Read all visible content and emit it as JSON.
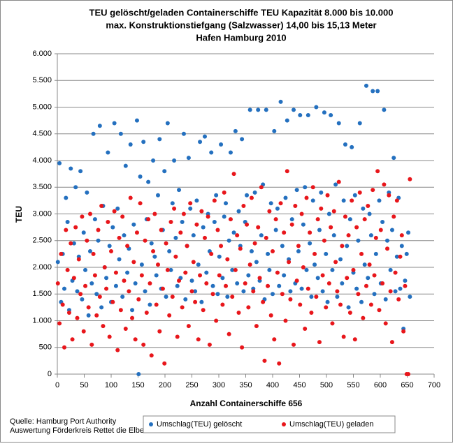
{
  "chart_data": {
    "type": "scatter",
    "title": [
      "TEU gelöscht/geladen Containerschiffe TEU Kapazität 8.000 bis 10.000",
      "max. Konstruktionstiefgang (Salzwasser) 14,00 bis 15,13 Meter",
      "Hafen Hamburg 2010"
    ],
    "xlabel": "Anzahl Containerschiffe 656",
    "ylabel": "TEU",
    "source": [
      "Quelle: Hamburg Port Authority",
      "Auswertung Förderkreis Rettet die Elbe"
    ],
    "xlim": [
      0,
      700
    ],
    "xticks": [
      0,
      50,
      100,
      150,
      200,
      250,
      300,
      350,
      400,
      450,
      500,
      550,
      600,
      650,
      700
    ],
    "ylim": [
      0,
      6000
    ],
    "yticks": [
      {
        "value": 0,
        "label": "0"
      },
      {
        "value": 500,
        "label": "500"
      },
      {
        "value": 1000,
        "label": "1.000"
      },
      {
        "value": 1500,
        "label": "1.500"
      },
      {
        "value": 2000,
        "label": "2.000"
      },
      {
        "value": 2500,
        "label": "2.500"
      },
      {
        "value": 3000,
        "label": "3.000"
      },
      {
        "value": 3500,
        "label": "3.500"
      },
      {
        "value": 4000,
        "label": "4.000"
      },
      {
        "value": 4500,
        "label": "4.500"
      },
      {
        "value": 5000,
        "label": "5.000"
      },
      {
        "value": 5500,
        "label": "5.500"
      },
      {
        "value": 6000,
        "label": "6.000"
      }
    ],
    "grid": true,
    "legend": "bottom",
    "x": [
      1,
      4,
      7,
      10,
      13,
      16,
      19,
      22,
      25,
      28,
      31,
      34,
      37,
      40,
      43,
      46,
      49,
      52,
      55,
      58,
      61,
      64,
      67,
      70,
      73,
      76,
      79,
      82,
      85,
      88,
      91,
      94,
      97,
      100,
      103,
      106,
      109,
      112,
      115,
      118,
      121,
      124,
      127,
      130,
      133,
      136,
      139,
      142,
      145,
      148,
      151,
      154,
      157,
      160,
      163,
      166,
      169,
      172,
      175,
      178,
      181,
      184,
      187,
      190,
      193,
      196,
      199,
      202,
      205,
      208,
      211,
      214,
      217,
      220,
      223,
      226,
      229,
      232,
      235,
      238,
      241,
      244,
      247,
      250,
      253,
      256,
      259,
      262,
      265,
      268,
      271,
      274,
      277,
      280,
      283,
      286,
      289,
      292,
      295,
      298,
      301,
      304,
      307,
      310,
      313,
      316,
      319,
      322,
      325,
      328,
      331,
      334,
      337,
      340,
      343,
      346,
      349,
      352,
      355,
      358,
      361,
      364,
      367,
      370,
      373,
      376,
      379,
      382,
      385,
      388,
      391,
      394,
      397,
      400,
      403,
      406,
      409,
      412,
      415,
      418,
      421,
      424,
      427,
      430,
      433,
      436,
      439,
      442,
      445,
      448,
      451,
      454,
      457,
      460,
      463,
      466,
      469,
      472,
      475,
      478,
      481,
      484,
      487,
      490,
      493,
      496,
      499,
      502,
      505,
      508,
      511,
      514,
      517,
      520,
      523,
      526,
      529,
      532,
      535,
      538,
      541,
      544,
      547,
      550,
      553,
      556,
      559,
      562,
      565,
      568,
      571,
      574,
      577,
      580,
      583,
      586,
      589,
      592,
      595,
      598,
      601,
      604,
      607,
      610,
      613,
      616,
      619,
      622,
      625,
      628,
      631,
      634,
      637,
      640,
      643,
      646,
      649,
      652,
      655
    ],
    "series": [
      {
        "name": "Umschlag(TEU) gelöscht",
        "color": "#2470bf",
        "values": [
          2100,
          3950,
          1350,
          2250,
          1600,
          3300,
          2850,
          1200,
          3850,
          1750,
          2450,
          3500,
          1550,
          2200,
          3800,
          1400,
          2650,
          1950,
          3400,
          1100,
          2300,
          1700,
          4500,
          2900,
          1500,
          2500,
          4650,
          1250,
          3150,
          2000,
          1800,
          4150,
          2400,
          1350,
          2750,
          4700,
          1650,
          3100,
          2150,
          4500,
          1450,
          2600,
          3900,
          1900,
          2350,
          4300,
          1200,
          2800,
          1700,
          4750,
          0,
          3700,
          2050,
          4350,
          1550,
          2900,
          3600,
          1300,
          2450,
          4000,
          2200,
          1850,
          3350,
          4400,
          1600,
          2700,
          3800,
          1450,
          4700,
          2300,
          1950,
          3200,
          4000,
          2550,
          1650,
          3450,
          1800,
          2850,
          4500,
          1400,
          2400,
          4050,
          3100,
          1750,
          2600,
          1550,
          3250,
          2050,
          4350,
          1350,
          2750,
          4450,
          1900,
          3000,
          2300,
          4150,
          1650,
          2850,
          3350,
          1500,
          2200,
          4300,
          1800,
          2950,
          3200,
          1450,
          2500,
          4150,
          1950,
          2650,
          4550,
          1700,
          3050,
          2400,
          4400,
          1550,
          2850,
          3350,
          1850,
          4950,
          2300,
          1600,
          3400,
          2100,
          4950,
          1750,
          2600,
          3550,
          1400,
          4950,
          2250,
          1950,
          3200,
          1500,
          4550,
          2700,
          3100,
          1650,
          5100,
          2400,
          1850,
          3300,
          4750,
          2150,
          1550,
          2900,
          4950,
          1700,
          3450,
          2300,
          4850,
          1600,
          2800,
          3500,
          1950,
          4850,
          2450,
          1450,
          3250,
          2050,
          5000,
          1800,
          2700,
          3400,
          1550,
          4900,
          2250,
          1350,
          3000,
          4850,
          1950,
          2600,
          3550,
          1450,
          4700,
          2150,
          1700,
          3250,
          4300,
          2400,
          1250,
          2900,
          4250,
          1900,
          3350,
          1600,
          2500,
          4700,
          1350,
          3100,
          2050,
          5400,
          1800,
          3000,
          2600,
          5300,
          1500,
          2250,
          5300,
          3250,
          1700,
          2850,
          4950,
          1400,
          2500,
          3400,
          1950,
          2700,
          4050,
          1550,
          2200,
          3300,
          1600,
          2400,
          850,
          1750,
          2250,
          2650,
          1450
        ]
      },
      {
        "name": "Umschlag(TEU) geladen",
        "color": "#e8161b",
        "values": [
          1700,
          950,
          2250,
          1300,
          500,
          2700,
          1950,
          1150,
          2450,
          650,
          1800,
          2750,
          1050,
          2150,
          1500,
          2950,
          800,
          1650,
          2500,
          1250,
          3000,
          550,
          2250,
          1850,
          1100,
          2700,
          1450,
          3150,
          900,
          2000,
          1600,
          2850,
          700,
          2300,
          1350,
          3050,
          1900,
          450,
          2550,
          1200,
          2950,
          1750,
          850,
          2400,
          1550,
          3300,
          1050,
          2100,
          650,
          2650,
          1400,
          3200,
          1850,
          550,
          2500,
          1150,
          2900,
          1700,
          350,
          2300,
          3000,
          1300,
          2050,
          800,
          2700,
          1600,
          200,
          2450,
          1950,
          1100,
          2850,
          1450,
          3100,
          2200,
          700,
          1750,
          2650,
          1250,
          3000,
          1900,
          2400,
          900,
          3200,
          1550,
          2100,
          1350,
          2800,
          650,
          1850,
          3050,
          1200,
          2550,
          1700,
          2950,
          550,
          2250,
          1500,
          3250,
          1000,
          2700,
          1850,
          2400,
          1300,
          3400,
          1650,
          2150,
          750,
          2900,
          1450,
          3750,
          1950,
          2600,
          1150,
          2350,
          500,
          3150,
          1700,
          2800,
          1250,
          2050,
          3300,
          1550,
          2450,
          900,
          2750,
          1800,
          3500,
          1350,
          250,
          2550,
          1650,
          3050,
          1100,
          2300,
          650,
          2900,
          1900,
          200,
          3200,
          1500,
          2650,
          1000,
          3800,
          2100,
          1400,
          2800,
          550,
          3150,
          1750,
          2400,
          1300,
          3000,
          2000,
          850,
          3300,
          1600,
          2650,
          1150,
          3500,
          2250,
          1450,
          2900,
          600,
          3100,
          1850,
          2500,
          1250,
          3350,
          1700,
          2750,
          950,
          3050,
          2100,
          1550,
          3600,
          1300,
          2400,
          700,
          2950,
          1800,
          2600,
          1150,
          3250,
          1950,
          650,
          2750,
          1500,
          3400,
          2250,
          1050,
          2900,
          1650,
          3150,
          2050,
          1300,
          3450,
          1850,
          2550,
          3800,
          1200,
          2700,
          1700,
          3550,
          950,
          2350,
          3350,
          1550,
          600,
          2950,
          1900,
          3250,
          1400,
          2200,
          2600,
          800,
          1650,
          0,
          0,
          3650
        ]
      }
    ]
  }
}
